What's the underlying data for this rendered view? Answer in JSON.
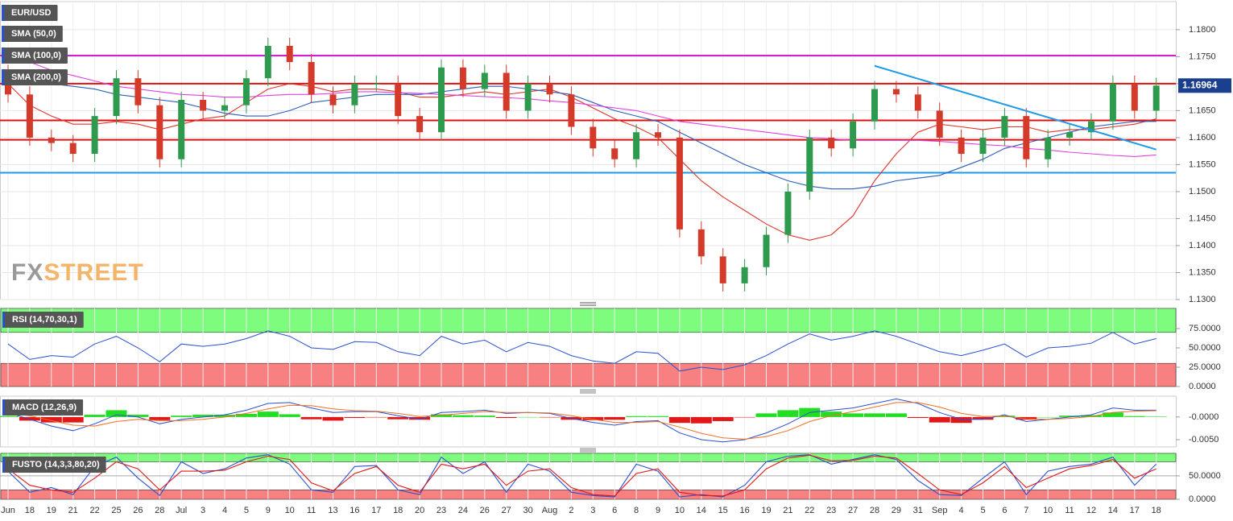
{
  "chart_data": [
    {
      "type": "candlestick",
      "title": "EUR/USD",
      "watermark": [
        "FX",
        "STREET"
      ],
      "categories": [
        "Jun",
        "18",
        "19",
        "21",
        "22",
        "25",
        "26",
        "28",
        "Jul",
        "3",
        "4",
        "5",
        "9",
        "10",
        "11",
        "13",
        "16",
        "17",
        "18",
        "20",
        "23",
        "24",
        "26",
        "27",
        "30",
        "Aug",
        "2",
        "3",
        "6",
        "8",
        "9",
        "10",
        "14",
        "15",
        "16",
        "19",
        "21",
        "22",
        "23",
        "27",
        "28",
        "29",
        "31",
        "Sep",
        "4",
        "5",
        "6",
        "7",
        "10",
        "11",
        "12",
        "14",
        "17",
        "18"
      ],
      "open": [
        1.172,
        1.168,
        1.16,
        1.159,
        1.157,
        1.164,
        1.171,
        1.166,
        1.156,
        1.167,
        1.165,
        1.166,
        1.171,
        1.177,
        1.174,
        1.168,
        1.166,
        1.17,
        1.17,
        1.164,
        1.161,
        1.173,
        1.169,
        1.172,
        1.165,
        1.17,
        1.168,
        1.162,
        1.158,
        1.156,
        1.161,
        1.16,
        1.143,
        1.138,
        1.133,
        1.136,
        1.142,
        1.15,
        1.16,
        1.158,
        1.163,
        1.169,
        1.168,
        1.165,
        1.16,
        1.157,
        1.16,
        1.164,
        1.156,
        1.16,
        1.161,
        1.163,
        1.17,
        1.165
      ],
      "high": [
        1.1735,
        1.1695,
        1.1615,
        1.1605,
        1.1655,
        1.1725,
        1.1725,
        1.1675,
        1.1685,
        1.1685,
        1.1675,
        1.1725,
        1.1785,
        1.1785,
        1.1755,
        1.1695,
        1.1715,
        1.1715,
        1.1715,
        1.1655,
        1.1745,
        1.1745,
        1.1735,
        1.1735,
        1.1715,
        1.1715,
        1.1695,
        1.1635,
        1.1595,
        1.1625,
        1.1625,
        1.1615,
        1.1445,
        1.1395,
        1.1375,
        1.1435,
        1.1515,
        1.1615,
        1.1615,
        1.1645,
        1.1705,
        1.1705,
        1.1695,
        1.1665,
        1.1615,
        1.1615,
        1.1655,
        1.1655,
        1.1615,
        1.1625,
        1.1645,
        1.1715,
        1.1715,
        1.1711
      ],
      "low": [
        1.1665,
        1.1585,
        1.1575,
        1.1555,
        1.1555,
        1.1625,
        1.1645,
        1.1545,
        1.1545,
        1.1635,
        1.1635,
        1.1645,
        1.1695,
        1.1725,
        1.1665,
        1.1645,
        1.1645,
        1.1685,
        1.1625,
        1.1595,
        1.1595,
        1.1675,
        1.1675,
        1.1635,
        1.1635,
        1.1665,
        1.1605,
        1.1565,
        1.1545,
        1.1545,
        1.1585,
        1.1415,
        1.1365,
        1.1315,
        1.1315,
        1.1345,
        1.1405,
        1.1485,
        1.1565,
        1.1565,
        1.1615,
        1.1665,
        1.1635,
        1.1585,
        1.1555,
        1.1555,
        1.1585,
        1.1545,
        1.1545,
        1.1585,
        1.1595,
        1.1615,
        1.1635,
        1.1635
      ],
      "close": [
        1.168,
        1.16,
        1.159,
        1.157,
        1.164,
        1.171,
        1.166,
        1.156,
        1.167,
        1.165,
        1.166,
        1.171,
        1.177,
        1.174,
        1.168,
        1.166,
        1.17,
        1.17,
        1.164,
        1.161,
        1.173,
        1.169,
        1.172,
        1.165,
        1.17,
        1.168,
        1.162,
        1.158,
        1.156,
        1.161,
        1.16,
        1.143,
        1.138,
        1.133,
        1.136,
        1.142,
        1.15,
        1.16,
        1.158,
        1.163,
        1.169,
        1.168,
        1.165,
        1.16,
        1.157,
        1.16,
        1.164,
        1.156,
        1.16,
        1.161,
        1.163,
        1.17,
        1.165,
        1.16964
      ],
      "up_color": "#2e9a4e",
      "down_color": "#d43a2a",
      "series": [
        {
          "name": "SMA (50,0)",
          "color": "#e0342a",
          "values": [
            1.17,
            1.166,
            1.164,
            1.1625,
            1.1625,
            1.163,
            1.1625,
            1.1615,
            1.1625,
            1.1635,
            1.164,
            1.1665,
            1.169,
            1.17,
            1.1695,
            1.1685,
            1.169,
            1.169,
            1.1685,
            1.1675,
            1.1675,
            1.168,
            1.1685,
            1.168,
            1.1685,
            1.169,
            1.1675,
            1.1655,
            1.1635,
            1.162,
            1.16,
            1.156,
            1.152,
            1.149,
            1.1465,
            1.144,
            1.142,
            1.141,
            1.142,
            1.1455,
            1.152,
            1.157,
            1.161,
            1.1625,
            1.162,
            1.1615,
            1.162,
            1.162,
            1.161,
            1.1615,
            1.1615,
            1.162,
            1.1625,
            1.1635
          ]
        },
        {
          "name": "SMA (100,0)",
          "color": "#2a5cb8",
          "values": [
            1.171,
            1.1705,
            1.17,
            1.1695,
            1.169,
            1.168,
            1.1675,
            1.167,
            1.1665,
            1.1655,
            1.1645,
            1.164,
            1.164,
            1.165,
            1.1665,
            1.167,
            1.1675,
            1.168,
            1.168,
            1.168,
            1.1685,
            1.169,
            1.1695,
            1.1695,
            1.169,
            1.1685,
            1.168,
            1.1665,
            1.165,
            1.164,
            1.163,
            1.161,
            1.159,
            1.157,
            1.155,
            1.1535,
            1.152,
            1.151,
            1.1505,
            1.1505,
            1.151,
            1.152,
            1.1525,
            1.153,
            1.1545,
            1.156,
            1.158,
            1.159,
            1.16,
            1.161,
            1.162,
            1.1625,
            1.163,
            1.163
          ]
        },
        {
          "name": "SMA (200,0)",
          "color": "#e040e0",
          "values": [
            1.176,
            1.174,
            1.1725,
            1.1715,
            1.1705,
            1.1695,
            1.169,
            1.1685,
            1.168,
            1.1678,
            1.1675,
            1.1675,
            1.1678,
            1.168,
            1.168,
            1.1682,
            1.1685,
            1.1685,
            1.1683,
            1.1682,
            1.168,
            1.1678,
            1.1676,
            1.1674,
            1.1672,
            1.1668,
            1.1665,
            1.166,
            1.1655,
            1.165,
            1.164,
            1.163,
            1.1625,
            1.162,
            1.1615,
            1.161,
            1.1605,
            1.16,
            1.1598,
            1.1595,
            1.1595,
            1.1595,
            1.1595,
            1.1593,
            1.159,
            1.1587,
            1.1585,
            1.158,
            1.1577,
            1.1573,
            1.157,
            1.1567,
            1.1565,
            1.1568
          ]
        }
      ],
      "levels": [
        {
          "value": 1.1752,
          "color": "#d41ed4"
        },
        {
          "value": 1.17,
          "color": "#e01010"
        },
        {
          "value": 1.1632,
          "color": "#e01010"
        },
        {
          "value": 1.1596,
          "color": "#e01010"
        },
        {
          "value": 1.1535,
          "color": "#1e9be6"
        }
      ],
      "trendline": {
        "x": [
          40,
          53
        ],
        "values": [
          1.1733,
          1.1578
        ],
        "color": "#1e9be6"
      },
      "ylim": [
        1.13,
        1.1852
      ],
      "yticks": [
        {
          "value": 1.13,
          "label": "1.1300"
        },
        {
          "value": 1.135,
          "label": "1.1350"
        },
        {
          "value": 1.14,
          "label": "1.1400"
        },
        {
          "value": 1.145,
          "label": "1.1450"
        },
        {
          "value": 1.15,
          "label": "1.1500"
        },
        {
          "value": 1.155,
          "label": "1.1550"
        },
        {
          "value": 1.16,
          "label": "1.1600"
        },
        {
          "value": 1.165,
          "label": "1.1650"
        },
        {
          "value": 1.17,
          "label": "1.1700"
        },
        {
          "value": 1.175,
          "label": "1.1750"
        },
        {
          "value": 1.18,
          "label": "1.1800"
        }
      ],
      "grid": true
    },
    {
      "type": "line",
      "title": "RSI (14,70,30,1)",
      "color": "#2a50d0",
      "values": [
        55,
        35,
        40,
        38,
        55,
        65,
        50,
        32,
        55,
        52,
        55,
        62,
        72,
        65,
        50,
        48,
        58,
        57,
        45,
        40,
        65,
        55,
        60,
        45,
        57,
        52,
        40,
        33,
        30,
        45,
        43,
        20,
        25,
        22,
        28,
        40,
        55,
        68,
        60,
        65,
        72,
        65,
        55,
        45,
        40,
        47,
        55,
        38,
        50,
        52,
        56,
        70,
        55,
        62
      ],
      "overbought": 70,
      "oversold": 30,
      "overbought_color": "#7dfc7d",
      "oversold_color": "#f88080",
      "ylim": [
        0,
        101
      ],
      "yticks": [
        {
          "value": 0,
          "label": "0.0000"
        },
        {
          "value": 25,
          "label": "25.0000"
        },
        {
          "value": 50,
          "label": "50.0000"
        },
        {
          "value": 75,
          "label": "75.0000"
        }
      ]
    },
    {
      "type": "macd",
      "title": "MACD (12,26,9)",
      "series": [
        {
          "color": "#2a50d0",
          "values": [
            0.001,
            -0.0005,
            -0.002,
            -0.003,
            -0.0015,
            0.0005,
            0.0,
            -0.0015,
            -0.0005,
            0.0,
            0.0005,
            0.0015,
            0.003,
            0.0032,
            0.002,
            0.001,
            0.0012,
            0.0012,
            0.0003,
            -0.0005,
            0.001,
            0.0012,
            0.0015,
            0.0008,
            0.001,
            0.0008,
            -0.0003,
            -0.0012,
            -0.0018,
            -0.001,
            -0.0008,
            -0.0035,
            -0.005,
            -0.0055,
            -0.005,
            -0.0035,
            -0.0015,
            0.001,
            0.0015,
            0.002,
            0.003,
            0.004,
            0.003,
            0.001,
            -0.0005,
            -0.0005,
            0.0005,
            -0.001,
            -0.0005,
            0.0,
            0.0005,
            0.002,
            0.0015,
            0.0015
          ]
        },
        {
          "color": "#f07020",
          "values": [
            0.0008,
            0.0003,
            -0.0008,
            -0.0018,
            -0.002,
            -0.001,
            -0.0005,
            -0.0008,
            -0.0008,
            -0.0005,
            0.0,
            0.0008,
            0.0018,
            0.0026,
            0.0025,
            0.0018,
            0.0014,
            0.0013,
            0.0008,
            0.0001,
            0.0004,
            0.0008,
            0.0012,
            0.001,
            0.001,
            0.0009,
            0.0003,
            -0.0005,
            -0.0012,
            -0.0012,
            -0.001,
            -0.0022,
            -0.0036,
            -0.0046,
            -0.0049,
            -0.0043,
            -0.003,
            -0.001,
            0.0003,
            0.0012,
            0.0022,
            0.0032,
            0.0032,
            0.0022,
            0.0008,
            0.0001,
            0.0002,
            -0.0004,
            -0.0005,
            -0.0003,
            0.0001,
            0.001,
            0.0013,
            0.0014
          ]
        }
      ],
      "histogram": [
        0.0002,
        -0.0008,
        -0.0012,
        -0.0012,
        0.0005,
        0.0015,
        0.0005,
        -0.0007,
        0.0003,
        0.0005,
        0.0005,
        0.0007,
        0.0012,
        0.0006,
        -0.0005,
        -0.0008,
        -0.0002,
        -0.0001,
        -0.0005,
        -0.0006,
        0.0006,
        0.0004,
        0.0003,
        -0.0002,
        0.0,
        -0.0001,
        -0.0006,
        -0.0007,
        -0.0006,
        0.0002,
        0.0002,
        -0.0013,
        -0.0014,
        -0.0009,
        -0.0001,
        0.0008,
        0.0015,
        0.002,
        0.0012,
        0.0008,
        0.0008,
        0.0008,
        -0.0002,
        -0.0012,
        -0.0013,
        -0.0006,
        0.0003,
        -0.0006,
        0.0,
        0.0003,
        0.0004,
        0.001,
        0.0002,
        0.0001
      ],
      "up_color": "#22dd22",
      "down_color": "#e01818",
      "ylim": [
        -0.0066,
        0.0046
      ],
      "yticks": [
        {
          "value": -0.005,
          "label": "-0.0050"
        },
        {
          "value": 0,
          "label": "-0.0000"
        }
      ]
    },
    {
      "type": "stochastic",
      "title": "FUSTO (14,3,3,80,20)",
      "series": [
        {
          "color": "#2a50d0",
          "values": [
            60,
            15,
            25,
            10,
            70,
            90,
            45,
            8,
            80,
            55,
            65,
            88,
            95,
            75,
            20,
            15,
            70,
            72,
            20,
            10,
            90,
            55,
            80,
            15,
            75,
            60,
            15,
            8,
            5,
            75,
            60,
            5,
            10,
            5,
            30,
            80,
            92,
            95,
            75,
            85,
            95,
            85,
            40,
            10,
            8,
            45,
            80,
            10,
            60,
            70,
            75,
            90,
            30,
            75
          ]
        },
        {
          "color": "#e01818",
          "values": [
            65,
            30,
            20,
            15,
            45,
            80,
            65,
            20,
            60,
            60,
            62,
            80,
            92,
            85,
            35,
            18,
            55,
            70,
            30,
            15,
            75,
            65,
            75,
            30,
            60,
            65,
            25,
            10,
            7,
            55,
            65,
            15,
            8,
            7,
            20,
            65,
            88,
            94,
            82,
            83,
            92,
            88,
            55,
            20,
            10,
            35,
            70,
            25,
            45,
            65,
            72,
            85,
            45,
            65
          ]
        }
      ],
      "overbought": 80,
      "oversold": 20,
      "overbought_color": "#7dfc7d",
      "oversold_color": "#f88080",
      "ylim": [
        0,
        98
      ],
      "yticks": [
        {
          "value": 0,
          "label": "0.0000"
        },
        {
          "value": 50,
          "label": "50.0000"
        }
      ]
    }
  ]
}
